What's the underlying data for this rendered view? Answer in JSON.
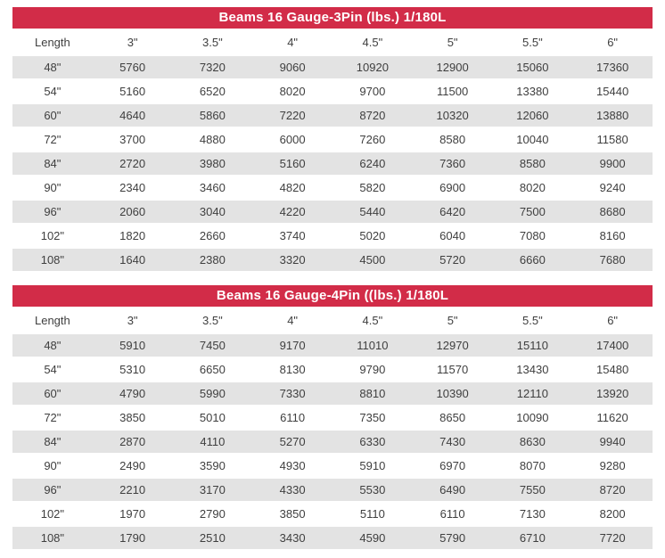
{
  "colors": {
    "header_red": "#d22c48",
    "title_text": "#ffffff",
    "row_alt": "#e3e3e3",
    "text_color": "#3f3f3f"
  },
  "tables": [
    {
      "title": "Beams 16 Gauge-3Pin  (lbs.)  1/180L",
      "columns": [
        "Length",
        "3\"",
        "3.5\"",
        "4\"",
        "4.5\"",
        "5\"",
        "5.5\"",
        "6\""
      ],
      "rows": [
        [
          "48\"",
          "5760",
          "7320",
          "9060",
          "10920",
          "12900",
          "15060",
          "17360"
        ],
        [
          "54\"",
          "5160",
          "6520",
          "8020",
          "9700",
          "11500",
          "13380",
          "15440"
        ],
        [
          "60\"",
          "4640",
          "5860",
          "7220",
          "8720",
          "10320",
          "12060",
          "13880"
        ],
        [
          "72\"",
          "3700",
          "4880",
          "6000",
          "7260",
          "8580",
          "10040",
          "11580"
        ],
        [
          "84\"",
          "2720",
          "3980",
          "5160",
          "6240",
          "7360",
          "8580",
          "9900"
        ],
        [
          "90\"",
          "2340",
          "3460",
          "4820",
          "5820",
          "6900",
          "8020",
          "9240"
        ],
        [
          "96\"",
          "2060",
          "3040",
          "4220",
          "5440",
          "6420",
          "7500",
          "8680"
        ],
        [
          "102\"",
          "1820",
          "2660",
          "3740",
          "5020",
          "6040",
          "7080",
          "8160"
        ],
        [
          "108\"",
          "1640",
          "2380",
          "3320",
          "4500",
          "5720",
          "6660",
          "7680"
        ]
      ]
    },
    {
      "title": "Beams 16 Gauge-4Pin  ((lbs.)  1/180L",
      "columns": [
        "Length",
        "3\"",
        "3.5\"",
        "4\"",
        "4.5\"",
        "5\"",
        "5.5\"",
        "6\""
      ],
      "rows": [
        [
          "48\"",
          "5910",
          "7450",
          "9170",
          "11010",
          "12970",
          "15110",
          "17400"
        ],
        [
          "54\"",
          "5310",
          "6650",
          "8130",
          "9790",
          "11570",
          "13430",
          "15480"
        ],
        [
          "60\"",
          "4790",
          "5990",
          "7330",
          "8810",
          "10390",
          "12110",
          "13920"
        ],
        [
          "72\"",
          "3850",
          "5010",
          "6110",
          "7350",
          "8650",
          "10090",
          "11620"
        ],
        [
          "84\"",
          "2870",
          "4110",
          "5270",
          "6330",
          "7430",
          "8630",
          "9940"
        ],
        [
          "90\"",
          "2490",
          "3590",
          "4930",
          "5910",
          "6970",
          "8070",
          "9280"
        ],
        [
          "96\"",
          "2210",
          "3170",
          "4330",
          "5530",
          "6490",
          "7550",
          "8720"
        ],
        [
          "102\"",
          "1970",
          "2790",
          "3850",
          "5110",
          "6110",
          "7130",
          "8200"
        ],
        [
          "108\"",
          "1790",
          "2510",
          "3430",
          "4590",
          "5790",
          "6710",
          "7720"
        ]
      ]
    }
  ]
}
